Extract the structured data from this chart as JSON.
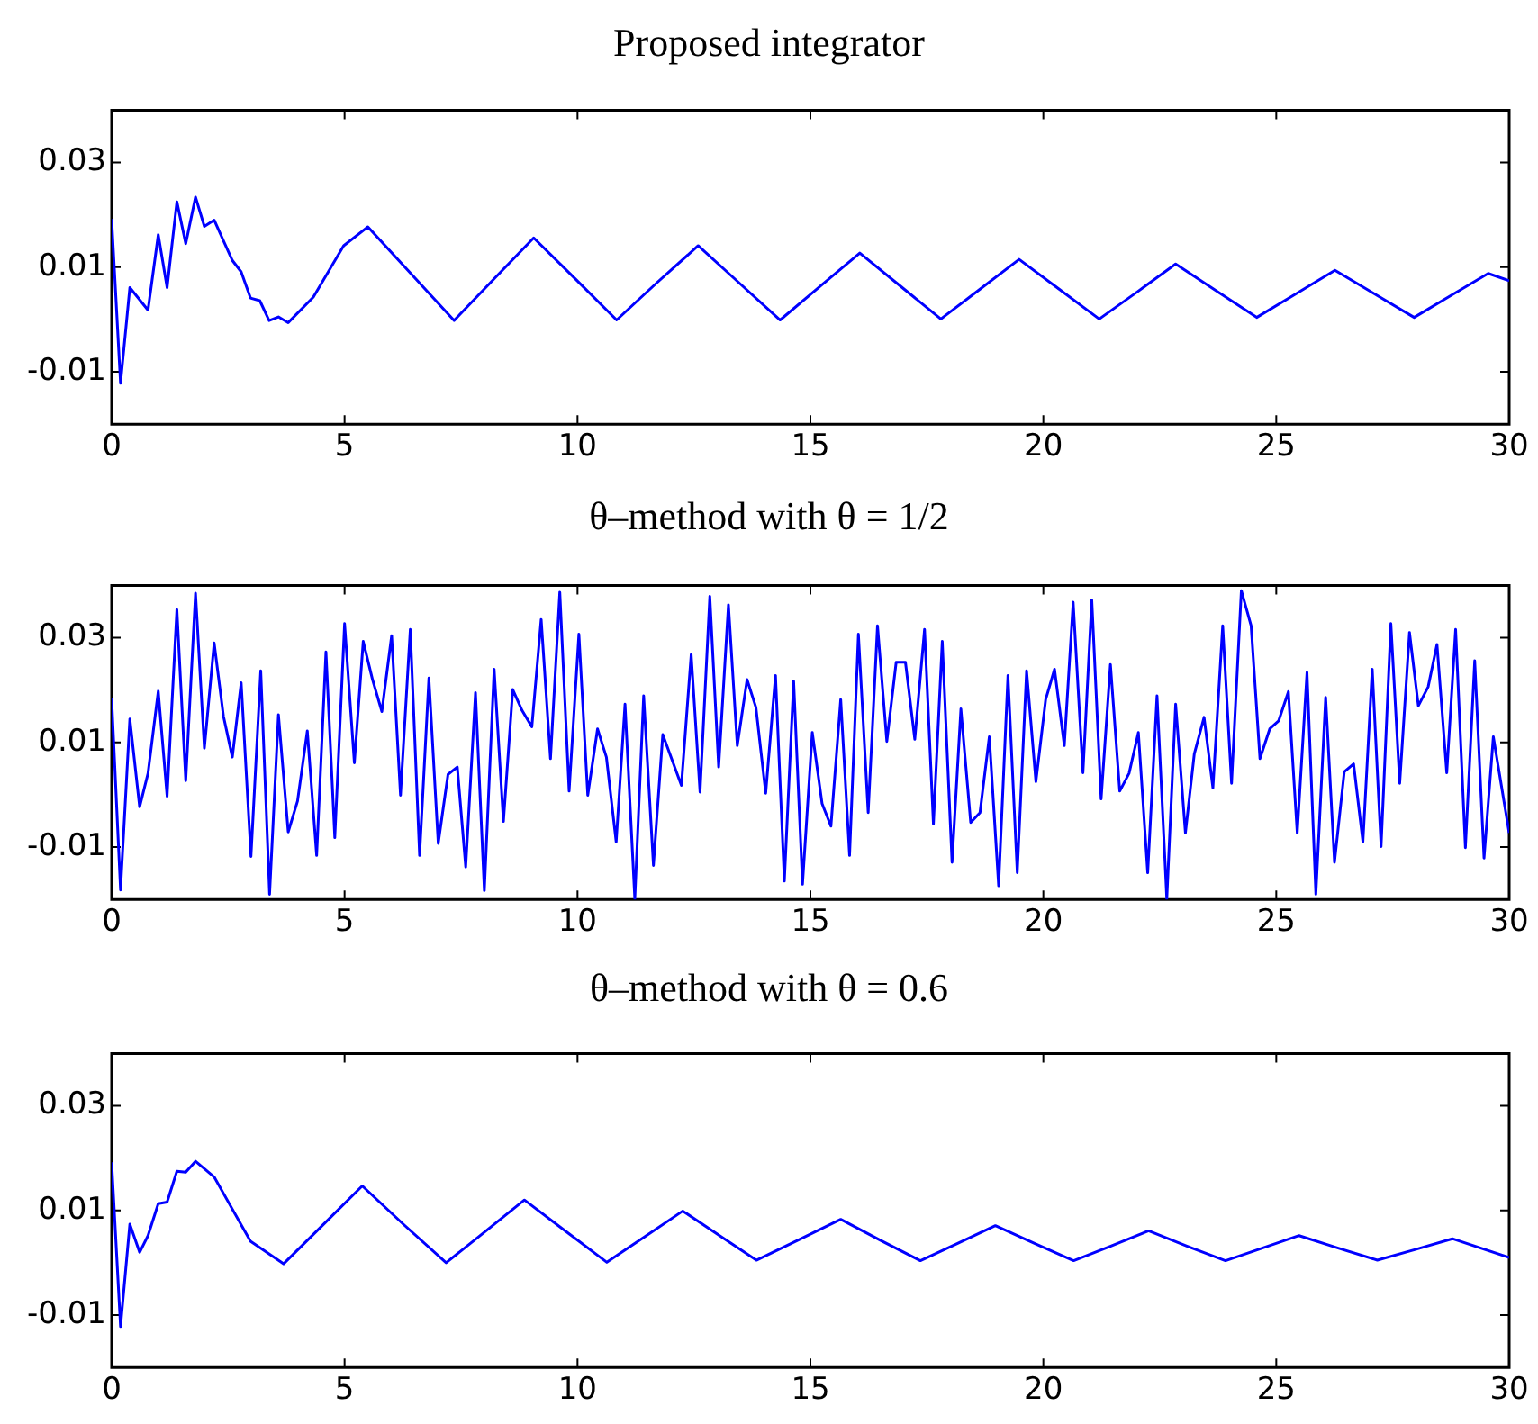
{
  "chart_data": [
    {
      "type": "line",
      "title": "Proposed integrator",
      "color": "#0000ff",
      "xlim": [
        0,
        30
      ],
      "ylim": [
        -0.02,
        0.04
      ],
      "xticks": [
        0,
        5,
        10,
        15,
        20,
        25,
        30
      ],
      "yticks": [
        -0.01,
        0.01,
        0.03
      ],
      "x": [
        0,
        0.19,
        0.39,
        0.78,
        1.0,
        1.19,
        1.4,
        1.59,
        1.8,
        1.99,
        2.2,
        2.59,
        2.78,
        2.98,
        3.18,
        3.38,
        3.58,
        3.79,
        4.33,
        4.98,
        5.5,
        6.42,
        7.35,
        8.2,
        9.06,
        9.95,
        10.84,
        11.7,
        12.59,
        13.47,
        14.35,
        15.2,
        16.06,
        16.93,
        17.8,
        18.64,
        19.48,
        20.34,
        21.2,
        22.02,
        22.84,
        23.71,
        24.58,
        25.42,
        26.26,
        27.11,
        27.96,
        28.75,
        29.55,
        30
      ],
      "values": [
        0.0192,
        -0.0122,
        0.0061,
        0.0018,
        0.0162,
        0.0061,
        0.0225,
        0.0145,
        0.0234,
        0.0178,
        0.019,
        0.0113,
        0.0091,
        0.0041,
        0.0036,
        -0.0002,
        0.0005,
        -0.0006,
        0.0043,
        0.0141,
        0.0177,
        0.0088,
        -0.0002,
        0.0077,
        0.0156,
        0.0078,
        -0.0001,
        0.007,
        0.0141,
        0.007,
        -0.0001,
        0.0063,
        0.0127,
        0.0064,
        0.0001,
        0.0058,
        0.0115,
        0.0058,
        0.0001,
        0.0053,
        0.0106,
        0.0055,
        0.0004,
        0.0049,
        0.0094,
        0.0049,
        0.0004,
        0.0046,
        0.0088,
        0.0074
      ]
    },
    {
      "type": "line",
      "title": "θ–method with θ = 1/2",
      "color": "#0000ff",
      "xlim": [
        0,
        30
      ],
      "ylim": [
        -0.02,
        0.04
      ],
      "xticks": [
        0,
        5,
        10,
        15,
        20,
        25,
        30
      ],
      "yticks": [
        -0.01,
        0.01,
        0.03
      ],
      "x": [
        0,
        0.19,
        0.39,
        0.6,
        0.78,
        1.0,
        1.19,
        1.4,
        1.59,
        1.8,
        1.99,
        2.2,
        2.4,
        2.59,
        2.78,
        2.99,
        3.2,
        3.39,
        3.58,
        3.79,
        3.99,
        4.2,
        4.4,
        4.6,
        4.79,
        5.0,
        5.21,
        5.4,
        5.6,
        5.8,
        6.01,
        6.2,
        6.41,
        6.61,
        6.81,
        7.01,
        7.22,
        7.42,
        7.6,
        7.81,
        8.0,
        8.21,
        8.41,
        8.61,
        8.81,
        9.02,
        9.22,
        9.42,
        9.62,
        9.82,
        10.03,
        10.22,
        10.43,
        10.62,
        10.83,
        11.02,
        11.23,
        11.42,
        11.63,
        11.83,
        12.23,
        12.44,
        12.63,
        12.84,
        13.03,
        13.24,
        13.43,
        13.64,
        13.83,
        14.04,
        14.25,
        14.44,
        14.64,
        14.83,
        15.04,
        15.25,
        15.44,
        15.65,
        15.84,
        16.03,
        16.24,
        16.44,
        16.64,
        16.84,
        17.04,
        17.24,
        17.45,
        17.64,
        17.83,
        18.04,
        18.23,
        18.44,
        18.64,
        18.84,
        19.04,
        19.24,
        19.44,
        19.64,
        19.84,
        20.05,
        20.24,
        20.45,
        20.64,
        20.85,
        21.04,
        21.24,
        21.44,
        21.64,
        21.84,
        22.04,
        22.24,
        22.44,
        22.65,
        22.84,
        23.05,
        23.24,
        23.45,
        23.64,
        23.85,
        24.04,
        24.25,
        24.46,
        24.65,
        24.86,
        25.05,
        25.26,
        25.45,
        25.66,
        25.85,
        26.06,
        26.25,
        26.46,
        26.66,
        26.86,
        27.06,
        27.25,
        27.46,
        27.65,
        27.86,
        28.05,
        28.26,
        28.45,
        28.66,
        28.85,
        29.06,
        29.26,
        29.46,
        29.66,
        30
      ],
      "values": [
        0.0184,
        -0.0182,
        0.0145,
        -0.0023,
        0.0041,
        0.0198,
        -0.0003,
        0.0354,
        0.0027,
        0.0385,
        0.0089,
        0.029,
        0.015,
        0.0072,
        0.0214,
        -0.0118,
        0.0237,
        -0.019,
        0.0153,
        -0.0071,
        -0.0012,
        0.0122,
        -0.0116,
        0.0273,
        -0.0082,
        0.0327,
        0.0061,
        0.0293,
        0.022,
        0.0159,
        0.0304,
        -0.0001,
        0.0316,
        -0.0116,
        0.0223,
        -0.0093,
        0.0039,
        0.0053,
        -0.0138,
        0.0195,
        -0.0183,
        0.024,
        -0.0051,
        0.0201,
        0.0161,
        0.013,
        0.0335,
        0.0069,
        0.0387,
        0.0007,
        0.0307,
        -0.0001,
        0.0126,
        0.0072,
        -0.009,
        0.0173,
        -0.0199,
        0.0189,
        -0.0135,
        0.0115,
        0.0018,
        0.0268,
        0.0005,
        0.0379,
        0.0053,
        0.0363,
        0.0094,
        0.022,
        0.0167,
        0.0003,
        0.0228,
        -0.0165,
        0.0217,
        -0.0171,
        0.0119,
        -0.0017,
        -0.006,
        0.0182,
        -0.0116,
        0.0307,
        -0.0034,
        0.0323,
        0.0102,
        0.0253,
        0.0253,
        0.0106,
        0.0316,
        -0.0056,
        0.0293,
        -0.0129,
        0.0164,
        -0.0053,
        -0.0034,
        0.0111,
        -0.0174,
        0.0228,
        -0.0149,
        0.0237,
        0.0025,
        0.0182,
        0.024,
        0.0094,
        0.0368,
        0.0042,
        0.0372,
        -0.0008,
        0.0249,
        0.0007,
        0.0041,
        0.0119,
        -0.0149,
        0.0189,
        -0.0199,
        0.0173,
        -0.0073,
        0.0078,
        0.0148,
        0.0013,
        0.0323,
        0.0022,
        0.039,
        0.0323,
        0.0069,
        0.0126,
        0.0141,
        0.0197,
        -0.0073,
        0.0234,
        -0.019,
        0.0186,
        -0.0129,
        0.0044,
        0.0059,
        -0.009,
        0.024,
        -0.0099,
        0.0327,
        0.0022,
        0.031,
        0.017,
        0.0206,
        0.0287,
        0.0042,
        0.0316,
        -0.0101,
        0.0256,
        -0.0121,
        0.0111,
        -0.0073
      ]
    },
    {
      "type": "line",
      "title": "θ–method with θ = 0.6",
      "color": "#0000ff",
      "xlim": [
        0,
        30
      ],
      "ylim": [
        -0.02,
        0.04
      ],
      "xticks": [
        0,
        5,
        10,
        15,
        20,
        25,
        30
      ],
      "yticks": [
        -0.01,
        0.01,
        0.03
      ],
      "x": [
        0,
        0.19,
        0.39,
        0.6,
        0.78,
        1.0,
        1.19,
        1.4,
        1.59,
        1.8,
        2.2,
        2.98,
        3.69,
        4.53,
        5.38,
        6.27,
        7.18,
        8.02,
        8.86,
        9.75,
        10.63,
        11.45,
        12.26,
        13.05,
        13.84,
        14.75,
        15.65,
        16.5,
        17.36,
        18.16,
        18.97,
        19.81,
        20.65,
        21.45,
        22.26,
        23.08,
        23.91,
        24.7,
        25.49,
        26.33,
        27.17,
        27.97,
        28.78,
        30
      ],
      "values": [
        0.0192,
        -0.0122,
        0.0074,
        0.002,
        0.0052,
        0.0113,
        0.0116,
        0.0175,
        0.0173,
        0.0194,
        0.0164,
        0.0041,
        -0.0002,
        0.0072,
        0.0147,
        0.0073,
        0.0,
        0.006,
        0.012,
        0.006,
        0.0001,
        0.005,
        0.0099,
        0.0052,
        0.0005,
        0.0044,
        0.0083,
        0.0043,
        0.0004,
        0.0037,
        0.0071,
        0.0037,
        0.0004,
        0.0032,
        0.0061,
        0.0032,
        0.0004,
        0.0028,
        0.0052,
        0.0028,
        0.0005,
        0.0025,
        0.0046,
        0.001
      ]
    }
  ]
}
